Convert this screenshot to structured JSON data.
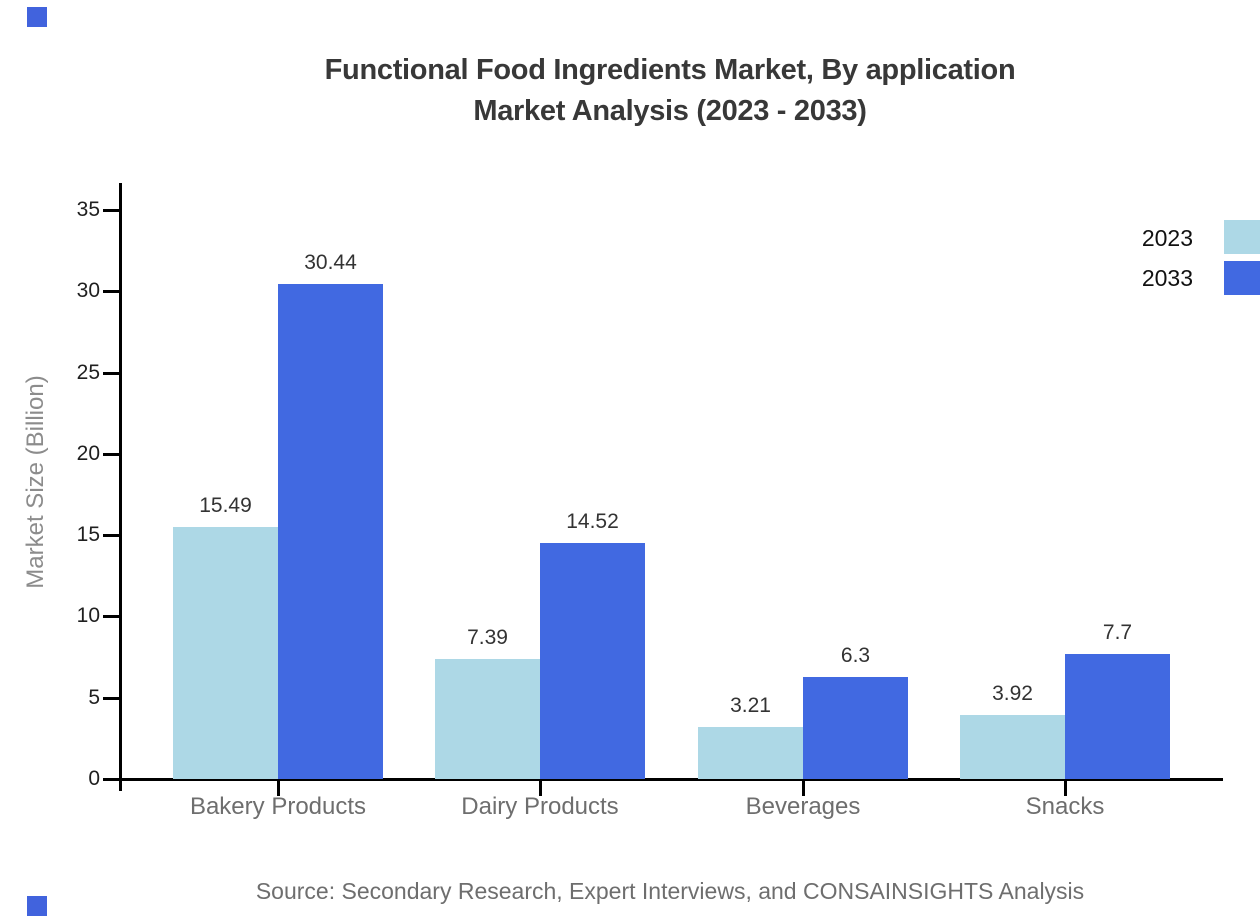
{
  "chart_data": {
    "type": "bar",
    "title_line1": "Functional Food Ingredients Market, By application",
    "title_line2": "Market Analysis (2023 - 2033)",
    "categories": [
      "Bakery Products",
      "Dairy Products",
      "Beverages",
      "Snacks"
    ],
    "series": [
      {
        "name": "2023",
        "color": "#ADD8E6",
        "values": [
          15.49,
          7.39,
          3.21,
          3.92
        ]
      },
      {
        "name": "2033",
        "color": "#4169E1",
        "values": [
          30.44,
          14.52,
          6.3,
          7.7
        ]
      }
    ],
    "xlabel": "",
    "ylabel": "Market Size (Billion)",
    "ylim": [
      0,
      35
    ],
    "yticks": [
      0,
      5,
      10,
      15,
      20,
      25,
      30,
      35
    ],
    "grid": false,
    "legend_position": "top-right, swatches clipped at right edge",
    "value_labels_shown": true,
    "source_note": "Source: Secondary Research, Expert Interviews, and CONSAINSIGHTS Analysis",
    "colors": {
      "axis": "#000000",
      "title_text": "#383838",
      "tick_label_text": "#1f1f1f",
      "value_label_text": "#333333",
      "muted_text": "#6e6e6e",
      "y_axis_title_text": "#8c8c8c",
      "corner_accent": "#4163dd"
    }
  }
}
